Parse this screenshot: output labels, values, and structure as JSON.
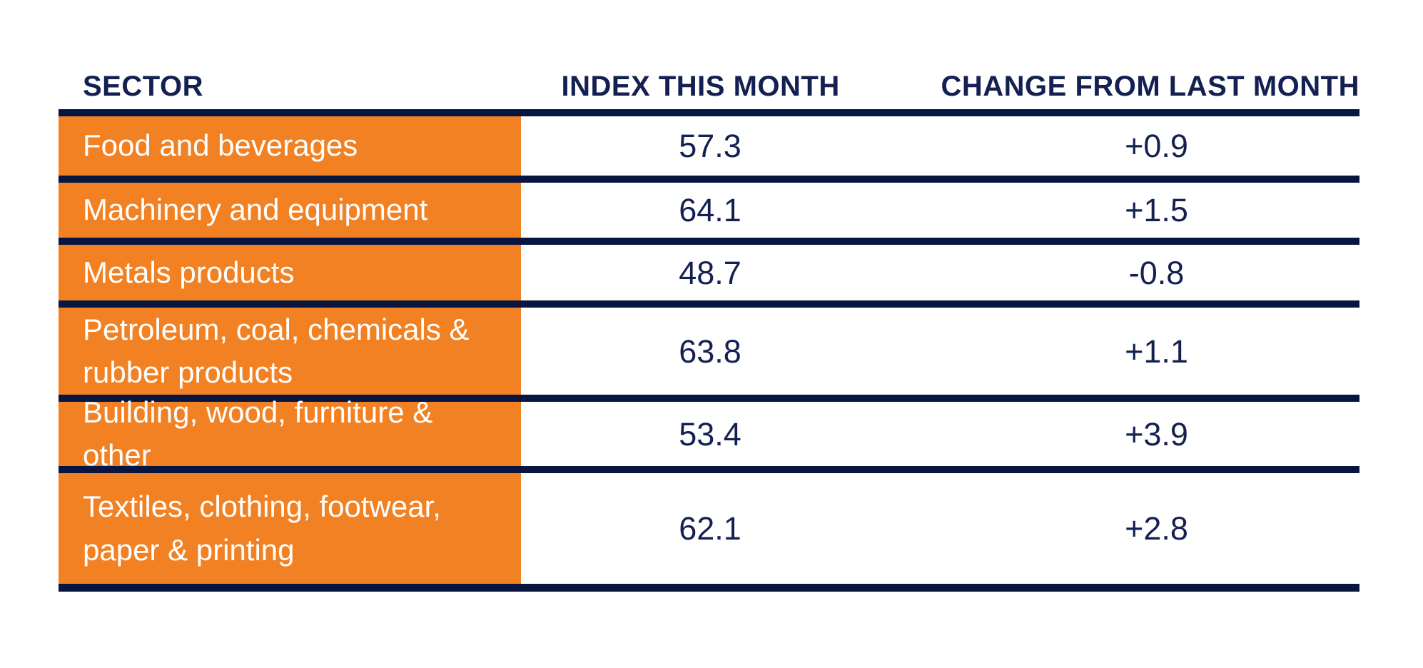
{
  "theme": {
    "background": "#FFFFFF",
    "accent_orange": "#F28123",
    "line_navy": "#071540",
    "text_navy": "#142051",
    "cell_text_white": "#FFFFFF"
  },
  "chart_data": {
    "type": "table",
    "columns": [
      "SECTOR",
      "INDEX THIS MONTH",
      "CHANGE FROM LAST MONTH"
    ],
    "rows": [
      {
        "sector": "Food and beverages",
        "index": "57.3",
        "change": "+0.9"
      },
      {
        "sector": "Machinery and equipment",
        "index": "64.1",
        "change": "+1.5"
      },
      {
        "sector": "Metals products",
        "index": "48.7",
        "change": "-0.8"
      },
      {
        "sector": "Petroleum, coal, chemicals &\nrubber products",
        "index": "63.8",
        "change": "+1.1"
      },
      {
        "sector": "Building, wood, furniture & other",
        "index": "53.4",
        "change": "+3.9"
      },
      {
        "sector": "Textiles, clothing, footwear,\npaper & printing",
        "index": "62.1",
        "change": "+2.8"
      }
    ]
  }
}
